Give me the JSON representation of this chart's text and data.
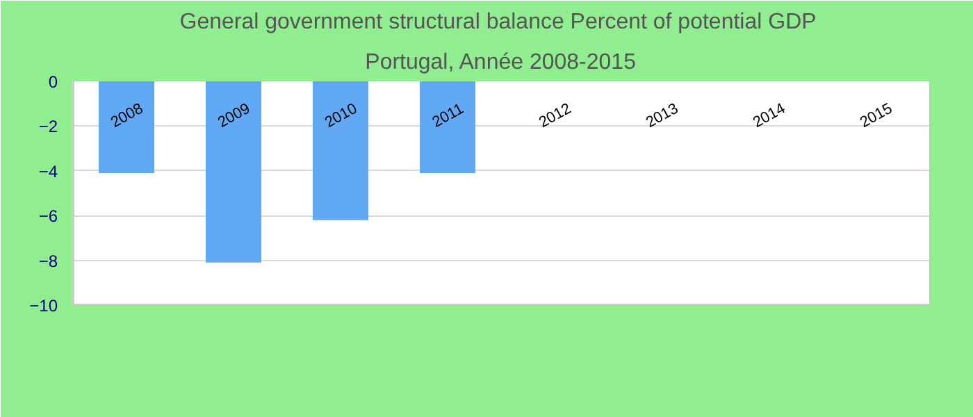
{
  "chart_data": {
    "type": "bar",
    "title": "General government structural balance  Percent of potential GDP",
    "subtitle": "Portugal, Année 2008-2015",
    "categories": [
      "2008",
      "2009",
      "2010",
      "2011",
      "2012",
      "2013",
      "2014",
      "2015"
    ],
    "values": [
      -4.1,
      -8.1,
      -6.2,
      -4.1,
      null,
      null,
      null,
      null
    ],
    "color": "#61a9f5",
    "ylim": [
      -10,
      0
    ],
    "yticks": [
      0,
      -2,
      -4,
      -6,
      -8,
      -10
    ],
    "grid": "y"
  }
}
